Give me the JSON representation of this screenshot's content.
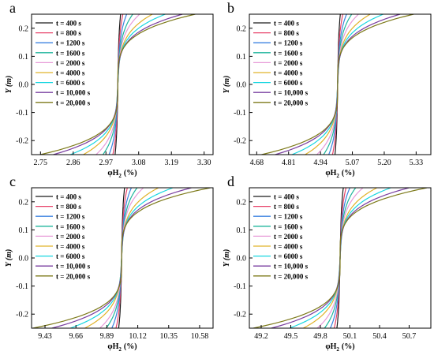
{
  "series_names": [
    "t = 400 s",
    "t = 800 s",
    "t = 1200 s",
    "t = 1600 s",
    "t = 2000 s",
    "t = 4000 s",
    "t = 6000 s",
    "t = 10,000 s",
    "t = 20,000 s"
  ],
  "series_colors": [
    "#1a1a1a",
    "#e8436a",
    "#3b82e0",
    "#1fb59c",
    "#e79ad8",
    "#e0b32a",
    "#17d6e0",
    "#7a3fa0",
    "#7d7a1a"
  ],
  "chart_data": [
    {
      "type": "line",
      "panel_label": "a",
      "ylabel": "Y (m)",
      "xlabel_main": "φH",
      "xlabel_sub": "2",
      "xlabel_unit": "(%)",
      "x_ticks": [
        2.75,
        2.86,
        2.97,
        3.08,
        3.19,
        3.3
      ],
      "x_tick_labels": [
        "2.75",
        "2.86",
        "2.97",
        "3.08",
        "3.19",
        "3.30"
      ],
      "y_ticks": [
        -0.2,
        -0.1,
        0.0,
        0.1,
        0.2
      ],
      "y_tick_labels": [
        "-0.2",
        "-0.1",
        "0.0",
        "0.1",
        "0.2"
      ],
      "xlim": [
        2.72,
        3.33
      ],
      "ylim": [
        -0.25,
        0.25
      ],
      "center": 3.01,
      "deltas": [
        0.017,
        0.028,
        0.045,
        0.07,
        0.095,
        0.14,
        0.18,
        0.23,
        0.26
      ],
      "series": [
        {
          "name": "t = 400 s"
        },
        {
          "name": "t = 800 s"
        },
        {
          "name": "t = 1200 s"
        },
        {
          "name": "t = 1600 s"
        },
        {
          "name": "t = 2000 s"
        },
        {
          "name": "t = 4000 s"
        },
        {
          "name": "t = 6000 s"
        },
        {
          "name": "t = 10,000 s"
        },
        {
          "name": "t = 20,000 s"
        }
      ]
    },
    {
      "type": "line",
      "panel_label": "b",
      "ylabel": "Y (m)",
      "xlabel_main": "φH",
      "xlabel_sub": "2",
      "xlabel_unit": "(%)",
      "x_ticks": [
        4.68,
        4.81,
        4.94,
        5.07,
        5.2,
        5.33
      ],
      "x_tick_labels": [
        "4.68",
        "4.81",
        "4.94",
        "5.07",
        "5.20",
        "5.33"
      ],
      "y_ticks": [
        -0.2,
        -0.1,
        0.0,
        0.1,
        0.2
      ],
      "y_tick_labels": [
        "-0.2",
        "-0.1",
        "0.0",
        "0.1",
        "0.2"
      ],
      "xlim": [
        4.65,
        5.39
      ],
      "ylim": [
        -0.25,
        0.25
      ],
      "center": 5.01,
      "deltas": [
        0.02,
        0.035,
        0.055,
        0.08,
        0.11,
        0.16,
        0.21,
        0.27,
        0.31
      ],
      "series": [
        {
          "name": "t = 400 s"
        },
        {
          "name": "t = 800 s"
        },
        {
          "name": "t = 1200 s"
        },
        {
          "name": "t = 1600 s"
        },
        {
          "name": "t = 2000 s"
        },
        {
          "name": "t = 4000 s"
        },
        {
          "name": "t = 6000 s"
        },
        {
          "name": "t = 10,000 s"
        },
        {
          "name": "t = 20,000 s"
        }
      ]
    },
    {
      "type": "line",
      "panel_label": "c",
      "ylabel": "Y (m)",
      "xlabel_main": "φH",
      "xlabel_sub": "2",
      "xlabel_unit": "(%)",
      "x_ticks": [
        9.43,
        9.66,
        9.89,
        10.12,
        10.35,
        10.58
      ],
      "x_tick_labels": [
        "9.43",
        "9.66",
        "9.89",
        "10.12",
        "10.35",
        "10.58"
      ],
      "y_ticks": [
        -0.2,
        -0.1,
        0.0,
        0.1,
        0.2
      ],
      "y_tick_labels": [
        "-0.2",
        "-0.1",
        "0.0",
        "0.1",
        "0.2"
      ],
      "xlim": [
        9.33,
        10.68
      ],
      "ylim": [
        -0.25,
        0.25
      ],
      "center": 10.0,
      "deltas": [
        0.04,
        0.07,
        0.11,
        0.16,
        0.21,
        0.33,
        0.43,
        0.55,
        0.66
      ],
      "series": [
        {
          "name": "t = 400 s"
        },
        {
          "name": "t = 800 s"
        },
        {
          "name": "t = 1200 s"
        },
        {
          "name": "t = 1600 s"
        },
        {
          "name": "t = 2000 s"
        },
        {
          "name": "t = 4000 s"
        },
        {
          "name": "t = 6000 s"
        },
        {
          "name": "t = 10,000 s"
        },
        {
          "name": "t = 20,000 s"
        }
      ]
    },
    {
      "type": "line",
      "panel_label": "d",
      "ylabel": "Y (m)",
      "xlabel_main": "φH",
      "xlabel_sub": "2",
      "xlabel_unit": "(%)",
      "x_ticks": [
        49.2,
        49.5,
        49.8,
        50.1,
        50.4,
        50.7
      ],
      "x_tick_labels": [
        "49.2",
        "49.5",
        "49.8",
        "50.1",
        "50.4",
        "50.7"
      ],
      "y_ticks": [
        -0.2,
        -0.1,
        0.0,
        0.1,
        0.2
      ],
      "y_tick_labels": [
        "-0.2",
        "-0.1",
        "0.0",
        "0.1",
        "0.2"
      ],
      "xlim": [
        49.08,
        50.92
      ],
      "ylim": [
        -0.25,
        0.25
      ],
      "center": 50.0,
      "deltas": [
        0.06,
        0.1,
        0.15,
        0.22,
        0.3,
        0.45,
        0.58,
        0.74,
        0.88
      ],
      "series": [
        {
          "name": "t = 400 s"
        },
        {
          "name": "t = 800 s"
        },
        {
          "name": "t = 1200 s"
        },
        {
          "name": "t = 1600 s"
        },
        {
          "name": "t = 2000 s"
        },
        {
          "name": "t = 4000 s"
        },
        {
          "name": "t = 6000 s"
        },
        {
          "name": "t = 10,000 s"
        },
        {
          "name": "t = 20,000 s"
        }
      ]
    }
  ]
}
